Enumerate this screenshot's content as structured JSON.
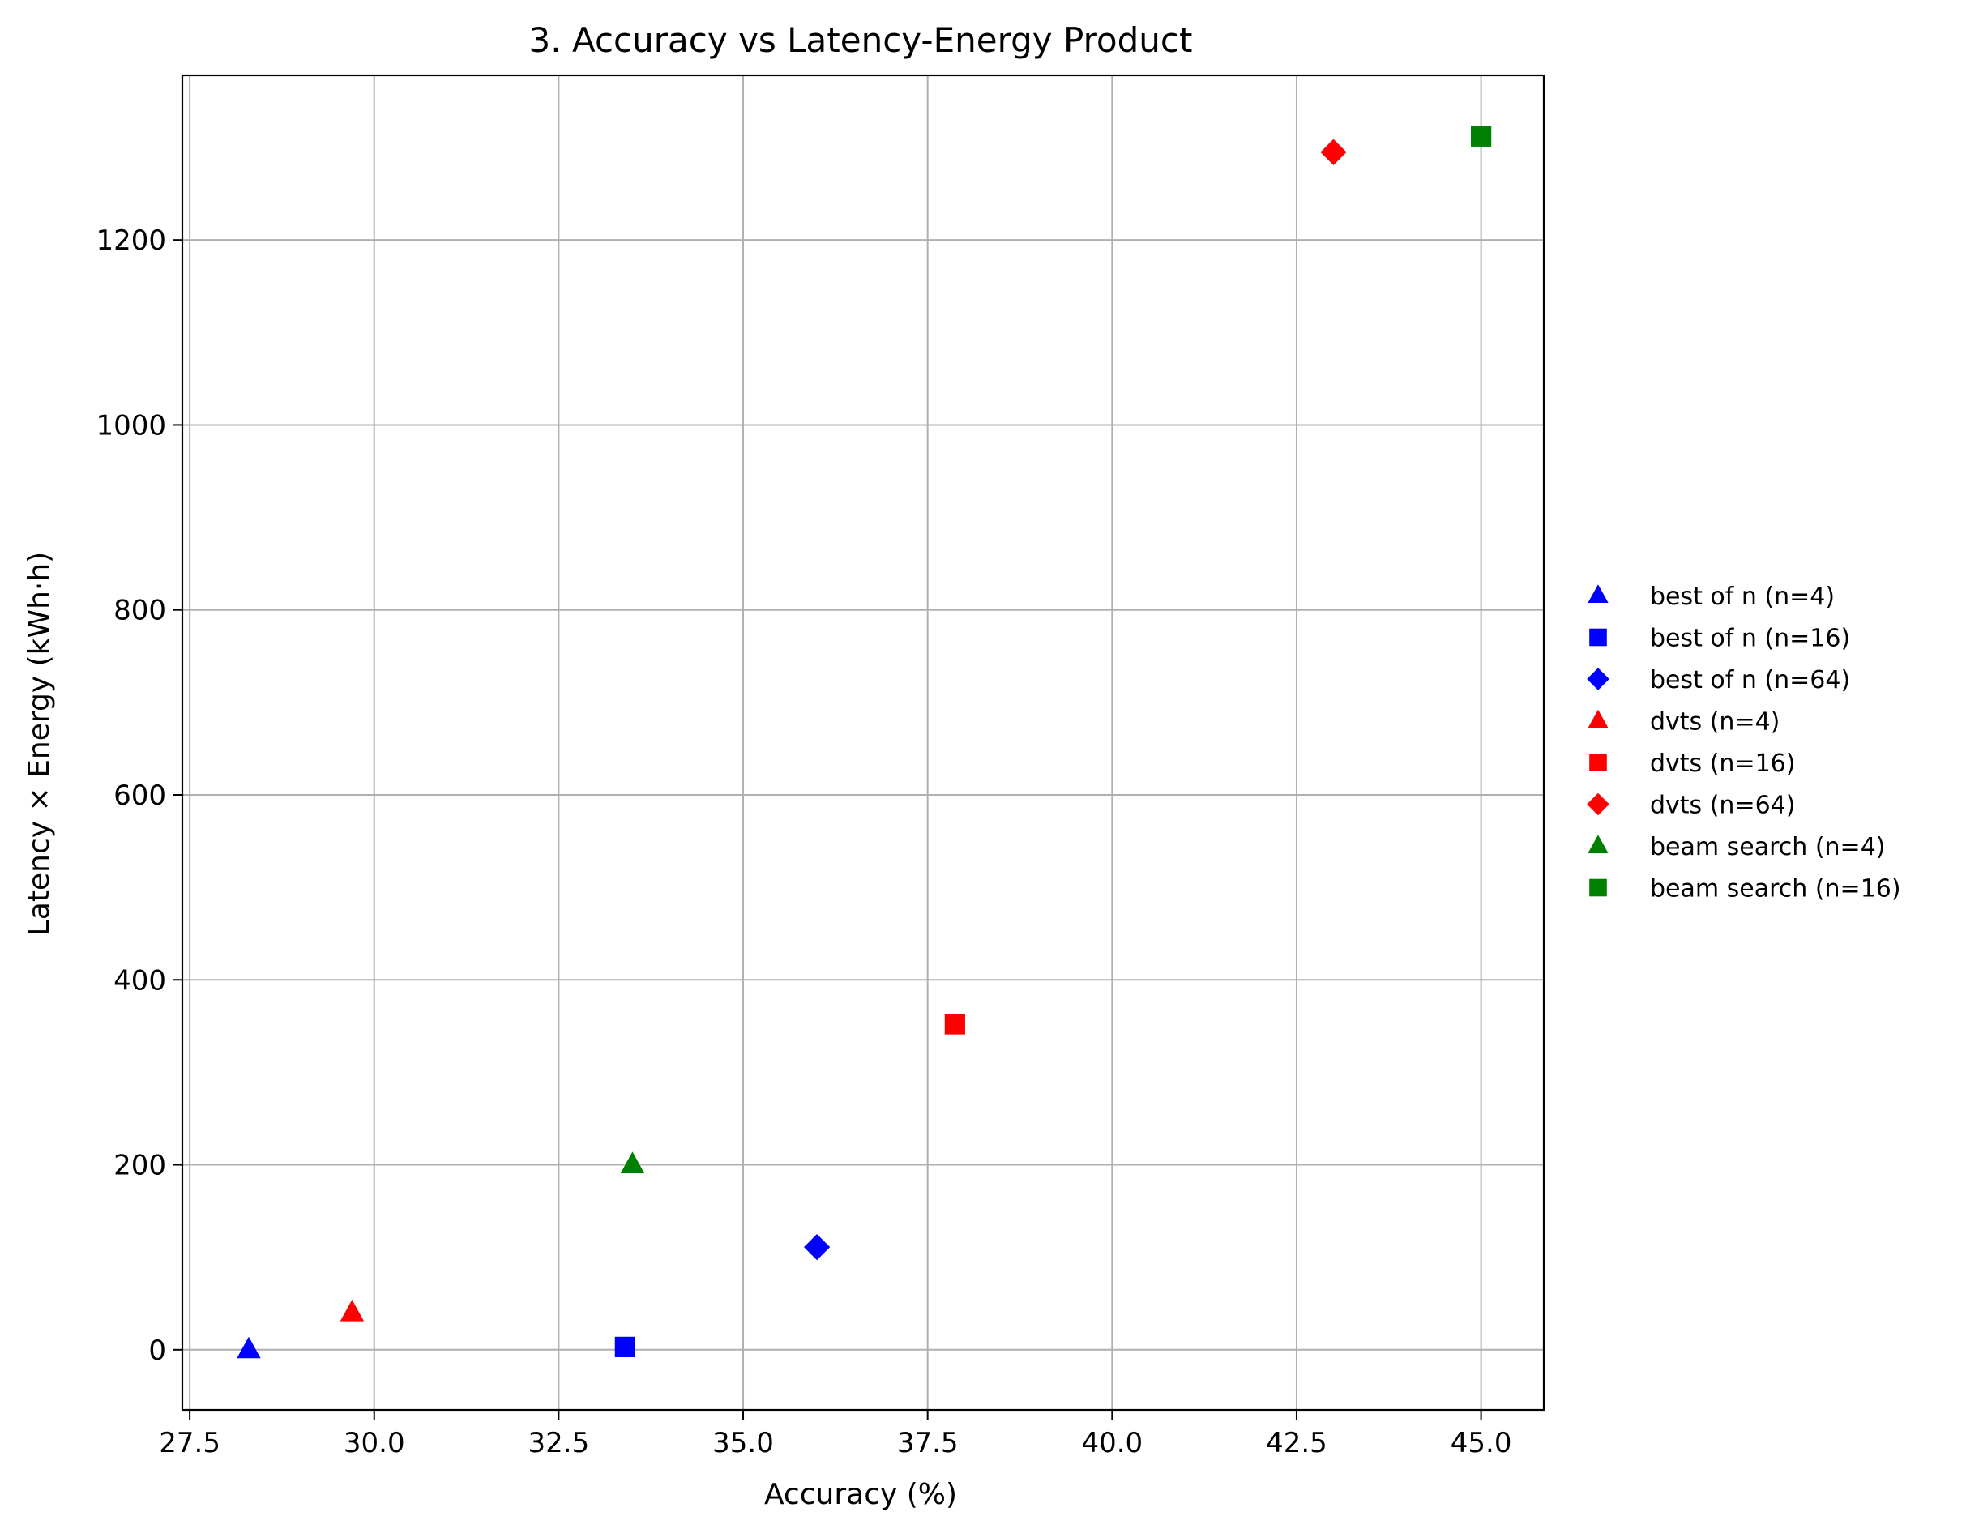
{
  "chart_data": {
    "type": "scatter",
    "title": "3. Accuracy vs Latency-Energy Product",
    "xlabel": "Accuracy (%)",
    "ylabel": "Latency × Energy (kWh·h)",
    "xlim": [
      27.4,
      45.85
    ],
    "ylim": [
      -65,
      1378
    ],
    "xticks": [
      27.5,
      30.0,
      32.5,
      35.0,
      37.5,
      40.0,
      42.5,
      45.0
    ],
    "xtick_labels": [
      "27.5",
      "30.0",
      "32.5",
      "35.0",
      "37.5",
      "40.0",
      "42.5",
      "45.0"
    ],
    "yticks": [
      0,
      200,
      400,
      600,
      800,
      1000,
      1200
    ],
    "ytick_labels": [
      "0",
      "200",
      "400",
      "600",
      "800",
      "1000",
      "1200"
    ],
    "grid": true,
    "legend_position": "right, outside plot, vertically centered",
    "series": [
      {
        "name": "best of n (n=4)",
        "color": "#0000ff",
        "marker": "triangle",
        "x": 28.3,
        "y": 0
      },
      {
        "name": "best of n (n=16)",
        "color": "#0000ff",
        "marker": "square",
        "x": 33.4,
        "y": 3
      },
      {
        "name": "best of n (n=64)",
        "color": "#0000ff",
        "marker": "diamond",
        "x": 36.0,
        "y": 111
      },
      {
        "name": "dvts (n=4)",
        "color": "#ff0000",
        "marker": "triangle",
        "x": 29.7,
        "y": 40
      },
      {
        "name": "dvts (n=16)",
        "color": "#ff0000",
        "marker": "square",
        "x": 37.87,
        "y": 352
      },
      {
        "name": "dvts (n=64)",
        "color": "#ff0000",
        "marker": "diamond",
        "x": 43.0,
        "y": 1295
      },
      {
        "name": "beam search (n=4)",
        "color": "#008000",
        "marker": "triangle",
        "x": 33.5,
        "y": 200
      },
      {
        "name": "beam search (n=16)",
        "color": "#008000",
        "marker": "square",
        "x": 45.0,
        "y": 1312
      }
    ]
  }
}
